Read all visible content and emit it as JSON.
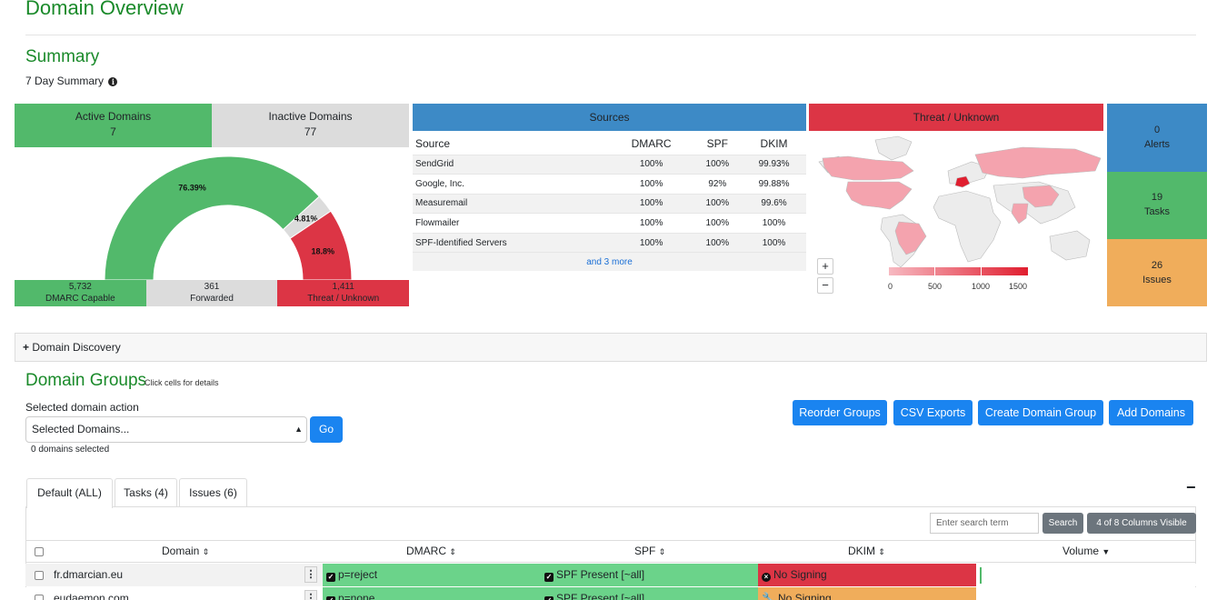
{
  "page": {
    "title": "Domain Overview"
  },
  "summary": {
    "title": "Summary",
    "subtitle": "7 Day Summary",
    "active": {
      "label": "Active Domains",
      "value": "7"
    },
    "inactive": {
      "label": "Inactive Domains",
      "value": "77"
    },
    "gauge": {
      "slices": [
        {
          "label": "76.39%",
          "value": 76.39,
          "color": "#52b96b"
        },
        {
          "label": "4.81%",
          "value": 4.81,
          "color": "#dcdcdc"
        },
        {
          "label": "18.8%",
          "value": 18.8,
          "color": "#dc3545"
        }
      ],
      "bar": [
        {
          "value": "5,732",
          "label": "DMARC Capable",
          "color": "#52b96b"
        },
        {
          "value": "361",
          "label": "Forwarded",
          "color": "#dcdcdc"
        },
        {
          "value": "1,411",
          "label": "Threat / Unknown",
          "color": "#dc3545"
        }
      ]
    },
    "sources": {
      "title": "Sources",
      "headers": [
        "Source",
        "DMARC",
        "SPF",
        "DKIM"
      ],
      "rows": [
        [
          "SendGrid",
          "100%",
          "100%",
          "99.93%"
        ],
        [
          "Google, Inc.",
          "100%",
          "92%",
          "99.88%"
        ],
        [
          "Measuremail",
          "100%",
          "100%",
          "99.6%"
        ],
        [
          "Flowmailer",
          "100%",
          "100%",
          "100%"
        ],
        [
          "SPF-Identified Servers",
          "100%",
          "100%",
          "100%"
        ]
      ],
      "more": "and 3 more"
    },
    "threat": {
      "title": "Threat / Unknown",
      "legend": [
        "0",
        "500",
        "1000",
        "1500"
      ],
      "zoom_in": "+",
      "zoom_out": "−"
    },
    "side": {
      "alerts": {
        "value": "0",
        "label": "Alerts"
      },
      "tasks": {
        "value": "19",
        "label": "Tasks"
      },
      "issues": {
        "value": "26",
        "label": "Issues"
      }
    }
  },
  "discovery": {
    "label": "Domain Discovery"
  },
  "groups": {
    "title": "Domain Groups",
    "hint": "Click cells for details",
    "action_label": "Selected domain action",
    "select_value": "Selected Domains...",
    "go": "Go",
    "selected_count": "0 domains selected",
    "buttons": [
      "Reorder Groups",
      "CSV Exports",
      "Create Domain Group",
      "Add Domains"
    ],
    "tabs": [
      "Default (ALL)",
      "Tasks (4)",
      "Issues (6)"
    ],
    "search_placeholder": "Enter search term",
    "search_btn": "Search",
    "columns_btn": "4 of 8 Columns Visible",
    "headers": {
      "domain": "Domain",
      "dmarc": "DMARC",
      "spf": "SPF",
      "dkim": "DKIM",
      "volume": "Volume"
    },
    "rows": [
      {
        "domain": "fr.dmarcian.eu",
        "dmarc": "p=reject",
        "spf": "SPF Present [~all]",
        "dkim": "No Signing"
      },
      {
        "domain": "eudaemon.com",
        "dmarc": "p=none",
        "spf": "SPF Present [~all]",
        "dkim": "No Signing"
      }
    ]
  },
  "colors": {
    "green": "#52b96b",
    "red": "#dc3545",
    "blue": "#3d8ac6",
    "orange": "#f0ad5b",
    "button": "#1a84f0"
  }
}
